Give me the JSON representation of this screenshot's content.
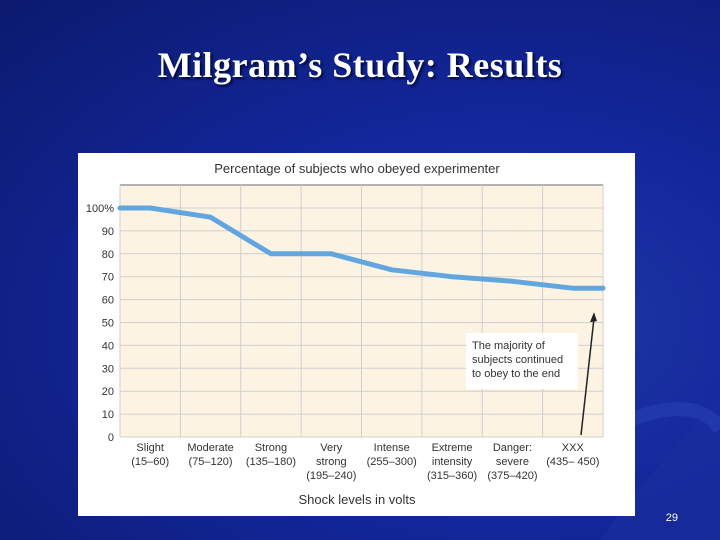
{
  "slide": {
    "title": "Milgram’s Study: Results",
    "page_number": "29"
  },
  "colors": {
    "background": "#13269a",
    "plot_area": "#fdf3e3",
    "line": "#62a6e0",
    "grid": "#cfcfcf",
    "text": "#333333"
  },
  "chart_data": {
    "type": "line",
    "title": "Percentage of subjects who obeyed experimenter",
    "xlabel": "Shock levels in volts",
    "ylabel": "",
    "ylim": [
      0,
      100
    ],
    "yticks": [
      {
        "value": 100,
        "label": "100%"
      },
      {
        "value": 90,
        "label": "90"
      },
      {
        "value": 80,
        "label": "80"
      },
      {
        "value": 70,
        "label": "70"
      },
      {
        "value": 60,
        "label": "60"
      },
      {
        "value": 50,
        "label": "50"
      },
      {
        "value": 40,
        "label": "40"
      },
      {
        "value": 30,
        "label": "30"
      },
      {
        "value": 20,
        "label": "20"
      },
      {
        "value": 10,
        "label": "10"
      },
      {
        "value": 0,
        "label": "0"
      }
    ],
    "categories": [
      [
        "Slight",
        "(15–60)"
      ],
      [
        "Moderate",
        "(75–120)"
      ],
      [
        "Strong",
        "(135–180)"
      ],
      [
        "Very",
        "strong",
        "(195–240)"
      ],
      [
        "Intense",
        "(255–300)"
      ],
      [
        "Extreme",
        "intensity",
        "(315–360)"
      ],
      [
        "Danger:",
        "severe",
        "(375–420)"
      ],
      [
        "XXX",
        "(435– 450)"
      ]
    ],
    "x": [
      0,
      1,
      2,
      3,
      4,
      5,
      6,
      7
    ],
    "values": [
      100,
      96,
      80,
      80,
      73,
      70,
      68,
      65
    ],
    "grid": true,
    "annotation": {
      "lines": [
        "The majority of",
        "subjects continued",
        "to obey to the end"
      ]
    }
  }
}
